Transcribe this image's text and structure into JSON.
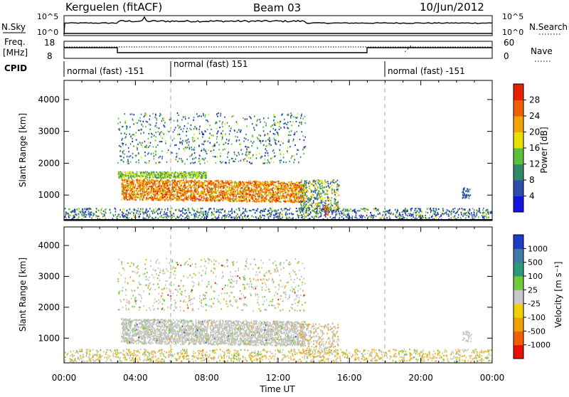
{
  "header": {
    "station": "Kerguelen (fitACF)",
    "beam": "Beam 03",
    "date": "10/Jun/2012"
  },
  "noise_panel": {
    "left_label": "N.Sky",
    "right_label": "N.Search",
    "left_ticks": [
      "10^5",
      "10^0"
    ],
    "right_ticks": [
      "10^5",
      "10^0"
    ]
  },
  "freq_panel": {
    "left_label_1": "Freq.",
    "left_label_2": "[MHz]",
    "right_label": "Nave",
    "left_ticks": [
      "18",
      "8"
    ],
    "right_ticks": [
      "60",
      "0"
    ]
  },
  "cpid": {
    "label": "CPID",
    "segments": [
      "normal (fast) -151",
      "normal (fast) 151",
      "normal (fast) -151"
    ]
  },
  "x_axis": {
    "label": "Time UT",
    "ticks": [
      "00:00",
      "04:00",
      "08:00",
      "12:00",
      "16:00",
      "20:00",
      "00:00"
    ]
  },
  "y_axis": {
    "label": "Slant Range [km]",
    "ticks": [
      "1000",
      "2000",
      "3000",
      "4000"
    ]
  },
  "power_scale": {
    "label": "Power [dB]",
    "ticks": [
      "4",
      "8",
      "12",
      "16",
      "20",
      "24",
      "28"
    ],
    "colors": [
      "#1414e0",
      "#2d4da8",
      "#2f8a6a",
      "#5bbf3a",
      "#e8e000",
      "#f2a400",
      "#f06000",
      "#e82000"
    ]
  },
  "velocity_scale": {
    "label": "Velocity [m s⁻¹]",
    "ticks": [
      "1000",
      "500",
      "100",
      "25",
      "-25",
      "-100",
      "-500",
      "-1000"
    ],
    "colors": [
      "#1e3cc8",
      "#3c7aa8",
      "#2a9a78",
      "#6ccc3a",
      "#c8c8c8",
      "#f0d000",
      "#f0a000",
      "#f06000",
      "#e81000"
    ]
  },
  "chart_data": [
    {
      "type": "heatmap",
      "title": "Power",
      "xlabel": "Time UT",
      "ylabel": "Slant Range [km]",
      "xlim": [
        "00:00",
        "24:00"
      ],
      "ylim": [
        200,
        4600
      ],
      "colorbar": {
        "label": "Power [dB]",
        "ticks": [
          4,
          8,
          12,
          16,
          20,
          24,
          28
        ]
      },
      "regions": [
        {
          "time": [
            "03:10",
            "13:30"
          ],
          "range_km": [
            900,
            1500
          ],
          "value_db": 26
        },
        {
          "time": [
            "03:00",
            "08:00"
          ],
          "range_km": [
            1500,
            1700
          ],
          "value_db": 14
        },
        {
          "time": [
            "13:00",
            "15:10"
          ],
          "range_km": [
            750,
            1300
          ],
          "value_db": 14
        },
        {
          "time": [
            "03:00",
            "13:30"
          ],
          "range_km": [
            2000,
            3600
          ],
          "value_db": 10
        },
        {
          "time": [
            "14:30",
            "14:50"
          ],
          "range_km": [
            300,
            700
          ],
          "value_db": 24
        }
      ]
    },
    {
      "type": "heatmap",
      "title": "Velocity",
      "xlabel": "Time UT",
      "ylabel": "Slant Range [km]",
      "xlim": [
        "00:00",
        "24:00"
      ],
      "ylim": [
        200,
        4600
      ],
      "colorbar": {
        "label": "Velocity [m s⁻¹]",
        "ticks": [
          1000,
          500,
          100,
          25,
          -25,
          -100,
          -500,
          -1000
        ]
      },
      "regions": [
        {
          "time": [
            "03:10",
            "13:30"
          ],
          "range_km": [
            900,
            1700
          ],
          "value_ms": 0
        },
        {
          "time": [
            "03:00",
            "13:30"
          ],
          "range_km": [
            2000,
            3600
          ],
          "value_ms": 0
        },
        {
          "time": [
            "00:00",
            "24:00"
          ],
          "range_km": [
            250,
            600
          ],
          "value_ms": -100
        }
      ]
    }
  ]
}
